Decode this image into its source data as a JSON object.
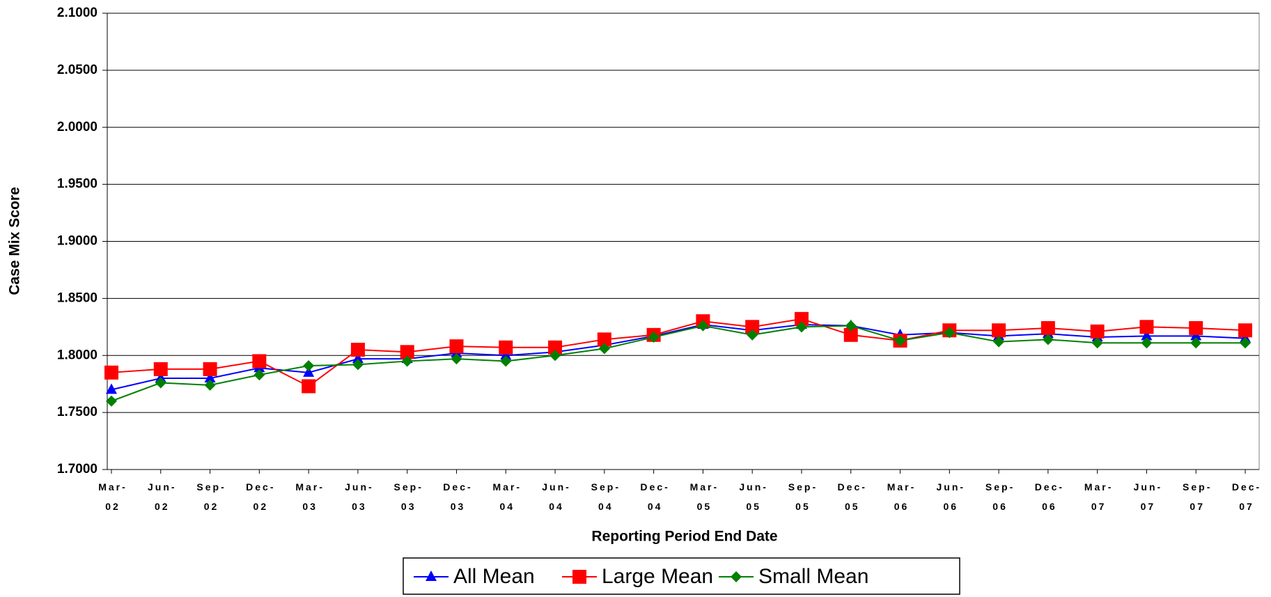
{
  "chart_data": {
    "type": "line",
    "y_label": "Case Mix Score",
    "x_label": "Reporting Period End Date",
    "categories": [
      "Mar-02",
      "Jun-02",
      "Sep-02",
      "Dec-02",
      "Mar-03",
      "Jun-03",
      "Sep-03",
      "Dec-03",
      "Mar-04",
      "Jun-04",
      "Sep-04",
      "Dec-04",
      "Mar-05",
      "Jun-05",
      "Sep-05",
      "Dec-05",
      "Mar-06",
      "Jun-06",
      "Sep-06",
      "Dec-06",
      "Mar-07",
      "Jun-07",
      "Sep-07",
      "Dec-07"
    ],
    "series": [
      {
        "name": "All Mean",
        "color": "#0000ff",
        "marker": "triangle",
        "values": [
          1.77,
          1.78,
          1.78,
          1.789,
          1.785,
          1.797,
          1.797,
          1.802,
          1.8,
          1.803,
          1.809,
          1.817,
          1.827,
          1.822,
          1.827,
          1.826,
          1.818,
          1.82,
          1.817,
          1.819,
          1.816,
          1.817,
          1.817,
          1.815
        ]
      },
      {
        "name": "Large Mean",
        "color": "#ff0000",
        "marker": "square",
        "values": [
          1.785,
          1.788,
          1.788,
          1.795,
          1.773,
          1.805,
          1.803,
          1.808,
          1.807,
          1.807,
          1.814,
          1.818,
          1.83,
          1.825,
          1.832,
          1.818,
          1.813,
          1.822,
          1.822,
          1.824,
          1.821,
          1.825,
          1.824,
          1.822
        ]
      },
      {
        "name": "Small Mean",
        "color": "#008000",
        "marker": "diamond",
        "values": [
          1.76,
          1.776,
          1.774,
          1.783,
          1.791,
          1.792,
          1.795,
          1.797,
          1.795,
          1.8,
          1.806,
          1.816,
          1.826,
          1.818,
          1.825,
          1.826,
          1.813,
          1.82,
          1.812,
          1.814,
          1.811,
          1.811,
          1.811,
          1.811
        ]
      }
    ],
    "ylim": [
      1.7,
      2.1
    ],
    "yticks": [
      {
        "value": 1.7,
        "label": "1.7000"
      },
      {
        "value": 1.75,
        "label": "1.7500"
      },
      {
        "value": 1.8,
        "label": "1.8000"
      },
      {
        "value": 1.85,
        "label": "1.8500"
      },
      {
        "value": 1.9,
        "label": "1.9000"
      },
      {
        "value": 1.95,
        "label": "1.9500"
      },
      {
        "value": 2.0,
        "label": "2.0000"
      },
      {
        "value": 2.05,
        "label": "2.0500"
      },
      {
        "value": 2.1,
        "label": "2.1000"
      }
    ],
    "grid": true,
    "legend": "bottom"
  }
}
